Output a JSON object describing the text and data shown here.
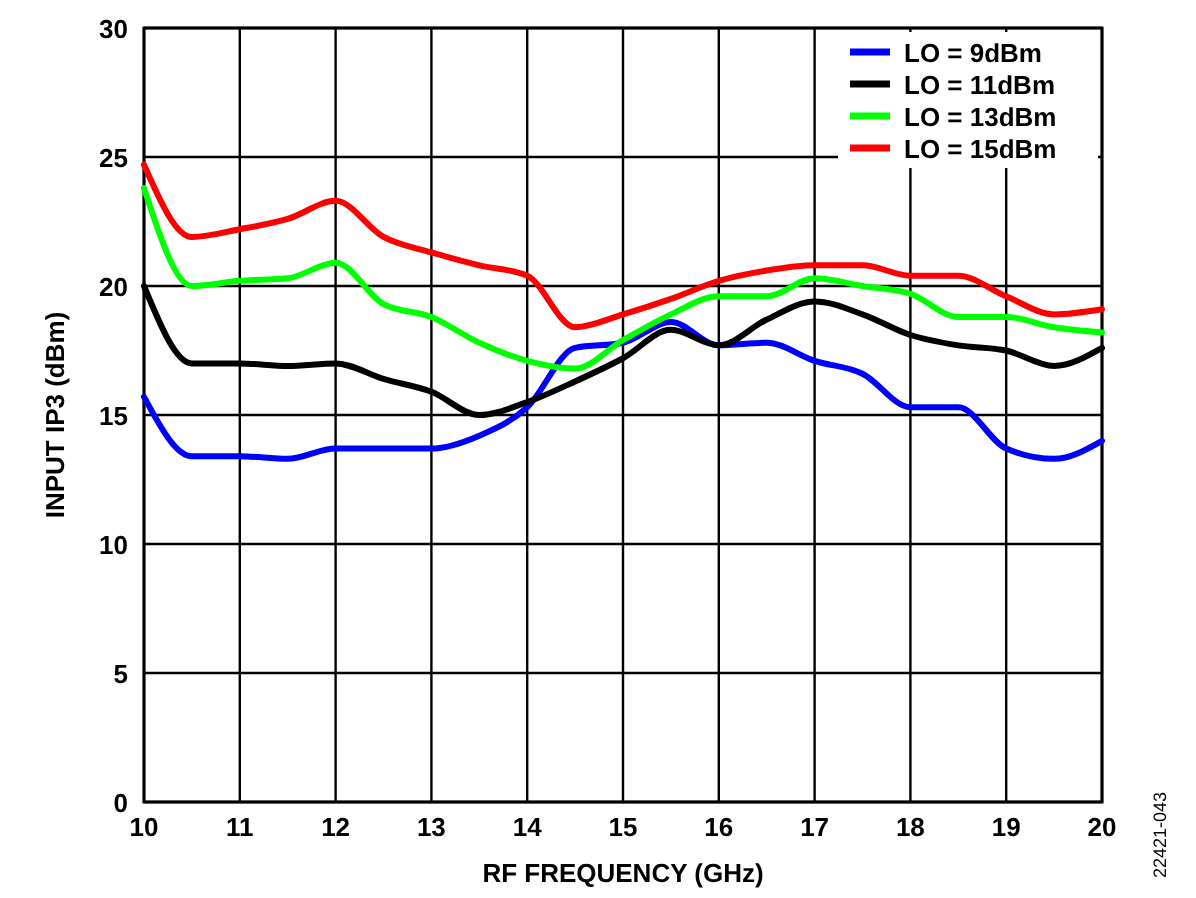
{
  "chart_data": {
    "type": "line",
    "xlabel": "RF FREQUENCY (GHz)",
    "ylabel": "INPUT IP3 (dBm)",
    "x": [
      10,
      10.5,
      11,
      11.5,
      12,
      12.5,
      13,
      13.5,
      14,
      14.5,
      15,
      15.5,
      16,
      16.5,
      17,
      17.5,
      18,
      18.5,
      19,
      19.5,
      20
    ],
    "series": [
      {
        "name": "LO = 9dBm",
        "color": "#0000ff",
        "values": [
          15.7,
          13.4,
          13.4,
          13.3,
          13.7,
          13.7,
          13.7,
          14.2,
          15.3,
          17.6,
          17.8,
          18.6,
          17.7,
          17.8,
          17.1,
          16.6,
          15.3,
          15.3,
          13.7,
          13.3,
          14.0
        ]
      },
      {
        "name": "LO = 11dBm",
        "color": "#000000",
        "values": [
          20.0,
          17.0,
          17.0,
          16.9,
          17.0,
          16.4,
          15.9,
          15.0,
          15.5,
          16.3,
          17.2,
          18.3,
          17.7,
          18.7,
          19.4,
          18.9,
          18.1,
          17.7,
          17.5,
          16.9,
          17.6
        ]
      },
      {
        "name": "LO = 13dBm",
        "color": "#00ff00",
        "values": [
          23.8,
          20.0,
          20.2,
          20.3,
          20.9,
          19.3,
          18.8,
          17.8,
          17.1,
          16.8,
          17.9,
          18.9,
          19.6,
          19.6,
          20.3,
          20.0,
          19.7,
          18.8,
          18.8,
          18.4,
          18.2
        ]
      },
      {
        "name": "LO = 15dBm",
        "color": "#ff0000",
        "values": [
          24.7,
          21.9,
          22.2,
          22.6,
          23.3,
          21.9,
          21.3,
          20.8,
          20.4,
          18.4,
          18.9,
          19.5,
          20.2,
          20.6,
          20.8,
          20.8,
          20.4,
          20.4,
          19.6,
          18.9,
          19.1
        ]
      }
    ],
    "xlim": [
      10,
      20
    ],
    "xticks": [
      10,
      11,
      12,
      13,
      14,
      15,
      16,
      17,
      18,
      19,
      20
    ],
    "ylim": [
      0,
      30
    ],
    "yticks": [
      0,
      5,
      10,
      15,
      20,
      25,
      30
    ],
    "grid": true,
    "legend": "top right",
    "marker": "none",
    "line_style": "solid",
    "annotations": [
      "22421-043"
    ]
  }
}
